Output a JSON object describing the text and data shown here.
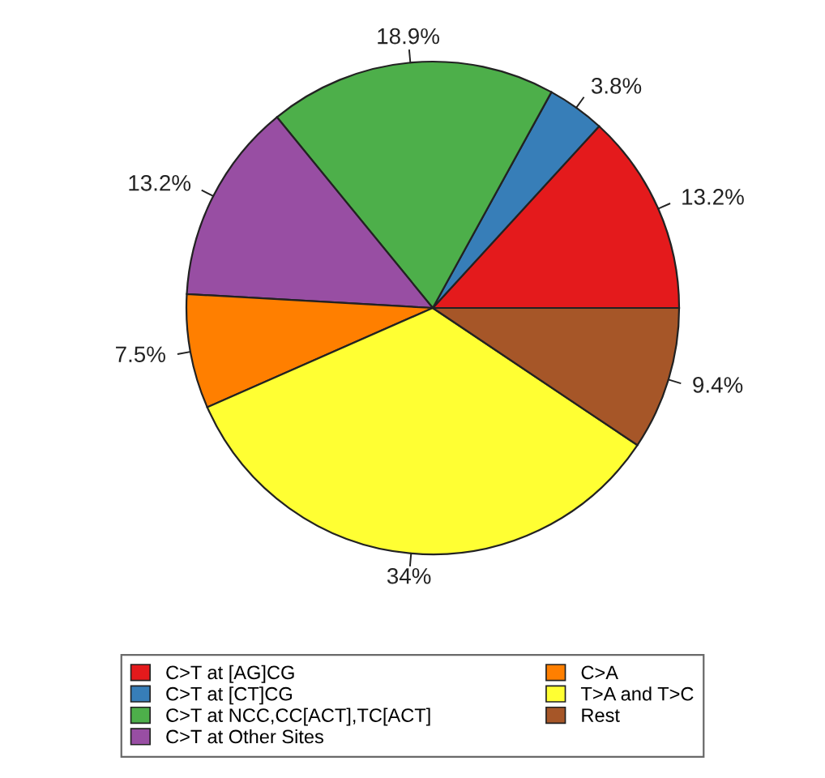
{
  "chart_data": {
    "type": "pie",
    "categories": [
      "C>T at [AG]CG",
      "C>T at [CT]CG",
      "C>T at NCC,CC[ACT],TC[ACT]",
      "C>T at Other Sites",
      "C>A",
      "T>A and T>C",
      "Rest"
    ],
    "values": [
      13.2,
      3.8,
      18.9,
      13.2,
      7.5,
      34,
      9.4
    ],
    "value_labels": [
      "13.2%",
      "3.8%",
      "18.9%",
      "13.2%",
      "7.5%",
      "34%",
      "9.4%"
    ],
    "colors": [
      "#e41a1c",
      "#377eb8",
      "#4daf4a",
      "#984ea3",
      "#ff7f00",
      "#ffff33",
      "#a65628"
    ],
    "legend": "bottom"
  }
}
